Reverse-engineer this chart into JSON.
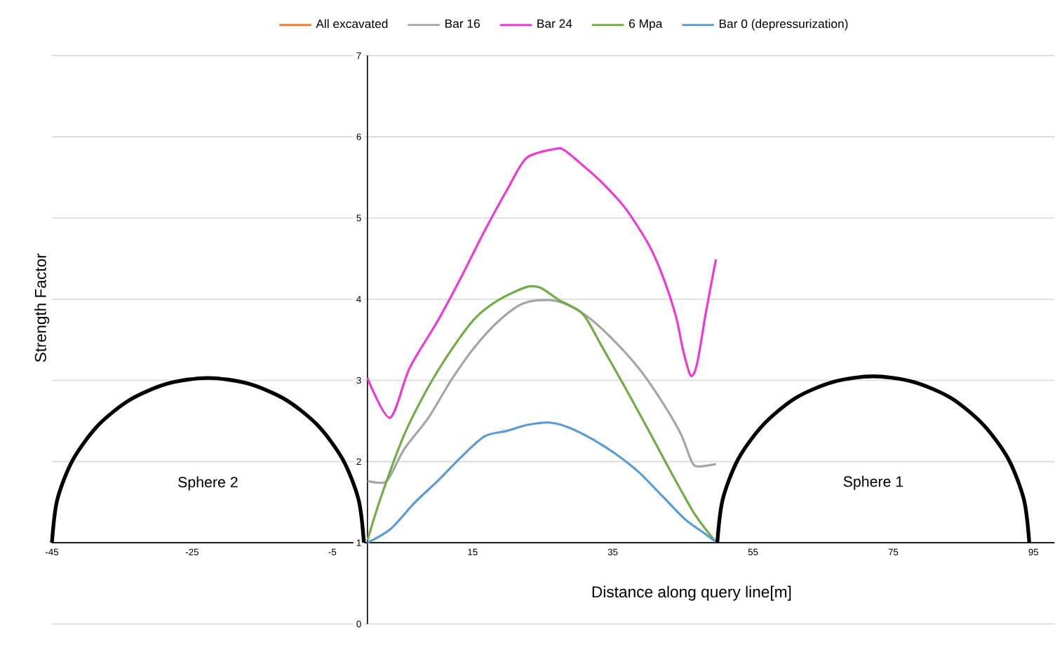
{
  "chart_data": {
    "type": "line",
    "xlabel": "Distance along query line[m]",
    "ylabel": "Strength Factor",
    "xlim": [
      -45,
      98
    ],
    "ylim": [
      0,
      7
    ],
    "xticks": [
      -45,
      -25,
      -5,
      15,
      35,
      55,
      75,
      95
    ],
    "yticks": [
      0,
      1,
      2,
      3,
      4,
      5,
      6,
      7
    ],
    "grid": "y",
    "legend": "top",
    "annotations": [
      "Sphere 2",
      "Sphere 1"
    ],
    "series": [
      {
        "name": "All excavated",
        "color": "#ed7d31"
      },
      {
        "name": "Bar 16",
        "color": "#a5a5a5",
        "x": [
          0,
          2.3,
          3.3,
          5.3,
          8.7,
          12,
          15.3,
          18.7,
          22,
          25.3,
          28,
          31.3,
          34.7,
          38.7,
          42,
          44.7,
          46.3,
          47.3,
          49.7
        ],
        "values": [
          1.76,
          1.74,
          1.83,
          2.16,
          2.54,
          3.01,
          3.41,
          3.73,
          3.94,
          3.99,
          3.95,
          3.79,
          3.53,
          3.15,
          2.74,
          2.34,
          1.99,
          1.94,
          1.97
        ]
      },
      {
        "name": "Bar 24",
        "color": "#ee3ad2",
        "x": [
          0,
          3.2,
          6,
          10,
          13.3,
          16.7,
          20,
          22.7,
          26.7,
          28,
          30.7,
          33.3,
          36.7,
          40,
          42,
          44,
          45,
          46.1,
          47,
          48.3,
          49.7
        ],
        "values": [
          3.03,
          2.54,
          3.15,
          3.73,
          4.26,
          4.84,
          5.36,
          5.74,
          5.85,
          5.84,
          5.65,
          5.45,
          5.13,
          4.69,
          4.31,
          3.79,
          3.38,
          3.06,
          3.2,
          3.85,
          4.49
        ]
      },
      {
        "name": "6 Mpa",
        "color": "#70ad47",
        "x": [
          0,
          2,
          5.3,
          8.7,
          12,
          15.3,
          18.7,
          22.7,
          24.7,
          27.3,
          30.7,
          33.3,
          36.7,
          40,
          43.3,
          46.7,
          49.7
        ],
        "values": [
          1.03,
          1.58,
          2.34,
          2.92,
          3.38,
          3.76,
          3.99,
          4.15,
          4.14,
          3.99,
          3.82,
          3.44,
          2.92,
          2.4,
          1.87,
          1.35,
          1.01
        ]
      },
      {
        "name": "Bar 0 (depressurization)",
        "color": "#5b9bd5",
        "x": [
          0,
          3.3,
          6.7,
          10,
          13.3,
          16.7,
          20,
          22.7,
          26,
          28.7,
          32,
          35.3,
          38.7,
          42,
          45.3,
          48,
          49.7
        ],
        "values": [
          1.0,
          1.17,
          1.49,
          1.76,
          2.05,
          2.31,
          2.38,
          2.45,
          2.48,
          2.42,
          2.28,
          2.1,
          1.87,
          1.58,
          1.29,
          1.12,
          1.01
        ]
      },
      {
        "color": "#000000",
        "x": [
          -45,
          -44.24,
          -42.02,
          -38.48,
          -33.88,
          -28.51,
          -22.75,
          -16.99,
          -11.62,
          -7.02,
          -3.48,
          -1.26,
          -0.5
        ],
        "values": [
          1,
          1.53,
          2.02,
          2.44,
          2.76,
          2.96,
          3.03,
          2.96,
          2.76,
          2.44,
          2.02,
          1.53,
          1
        ]
      },
      {
        "color": "#000000",
        "x": [
          49.9,
          50.66,
          52.88,
          56.42,
          61.02,
          66.39,
          72.15,
          77.91,
          83.28,
          87.88,
          91.42,
          93.64,
          94.4
        ],
        "values": [
          1,
          1.53,
          2.03,
          2.45,
          2.78,
          2.98,
          3.05,
          2.98,
          2.78,
          2.45,
          2.03,
          1.53,
          1
        ]
      }
    ]
  }
}
